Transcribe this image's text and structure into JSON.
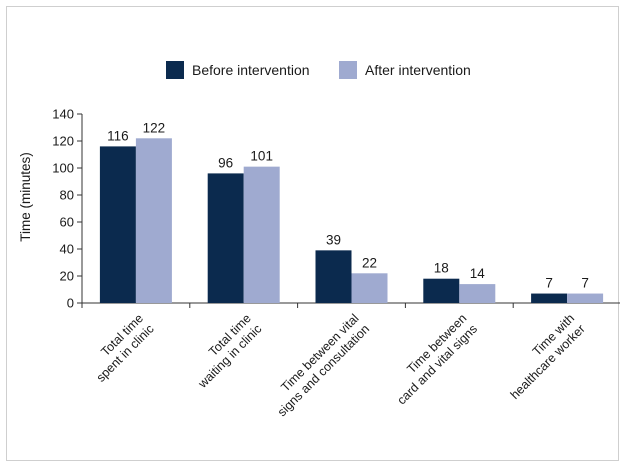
{
  "chart_data": {
    "type": "bar",
    "categories": [
      [
        "Total time",
        "spent in clinic"
      ],
      [
        "Total time",
        "waiting in clinic"
      ],
      [
        "Time between vital",
        "signs and consultation"
      ],
      [
        "Time between",
        "card and vital signs"
      ],
      [
        "Time with",
        "healthcare worker"
      ]
    ],
    "series": [
      {
        "name": "Before intervention",
        "values": [
          116,
          96,
          39,
          18,
          7
        ],
        "color": "#0b2a4e"
      },
      {
        "name": "After intervention",
        "values": [
          122,
          101,
          22,
          14,
          7
        ],
        "color": "#9faad0"
      }
    ],
    "title": "",
    "xlabel": "",
    "ylabel": "Time (minutes)",
    "ylim": [
      0,
      140
    ],
    "yticks": [
      0,
      20,
      40,
      60,
      80,
      100,
      120,
      140
    ],
    "grid": false,
    "legend": "top-center"
  }
}
